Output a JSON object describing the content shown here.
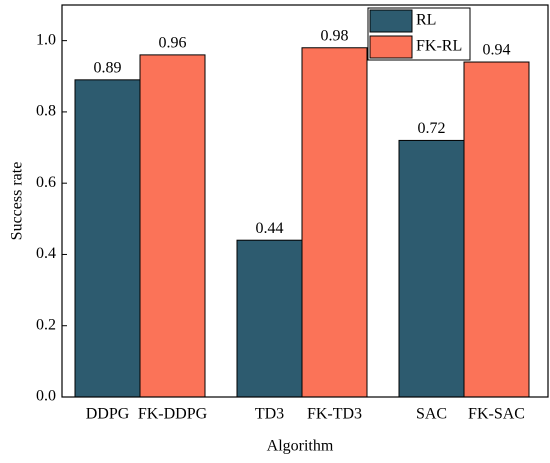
{
  "chart_data": {
    "type": "bar",
    "x_label": "Algorithm",
    "y_label": "Success rate",
    "categories": [
      "DDPG",
      "FK-DDPG",
      "TD3",
      "FK-TD3",
      "SAC",
      "FK-SAC"
    ],
    "series": [
      {
        "name": "RL",
        "color": "#2d5b6f",
        "values": [
          0.89,
          null,
          0.44,
          null,
          0.72,
          null
        ]
      },
      {
        "name": "FK-RL",
        "color": "#fb7358",
        "values": [
          null,
          0.96,
          null,
          0.98,
          null,
          0.94
        ]
      }
    ],
    "ylim": [
      0,
      1.1
    ],
    "yticks": [
      {
        "value": 0,
        "label": "0.0"
      },
      0.2,
      0.4,
      0.6,
      0.8,
      {
        "value": 1,
        "label": "1.0"
      }
    ],
    "legend": "upper right"
  }
}
